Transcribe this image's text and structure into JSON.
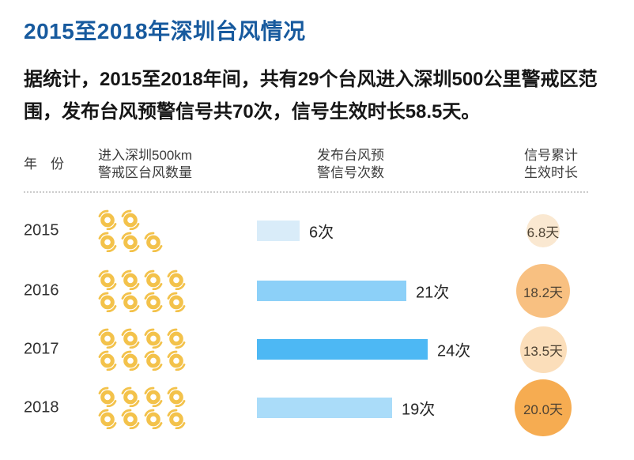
{
  "title": "2015至2018年深圳台风情况",
  "intro": {
    "line1": "据统计，2015至2018年间，共有29个台风进入深圳500公里警戒区范",
    "line2": "围，发布台风预警信号共70次，信号生效时长58.5天。"
  },
  "colors": {
    "title": "#175A9E",
    "typhoon_icon": "#F3C24B",
    "divider": "#cccccc"
  },
  "table": {
    "headers": {
      "year": "年　份",
      "typhoons_line1": "进入深圳500km",
      "typhoons_line2": "警戒区台风数量",
      "warnings_line1": "发布台风预",
      "warnings_line2": "警信号次数",
      "days_line1": "信号累计",
      "days_line2": "生效时长"
    },
    "rows": [
      {
        "year": "2015",
        "typhoon_count": 5,
        "icon_layout": [
          2,
          3
        ],
        "warning_count": 6,
        "warning_label": "6次",
        "bar_color": "#D9ECF9",
        "days": 6.8,
        "days_label": "6.8天",
        "circle_color": "#FAE8D1"
      },
      {
        "year": "2016",
        "typhoon_count": 8,
        "icon_layout": [
          4,
          4
        ],
        "warning_count": 21,
        "warning_label": "21次",
        "bar_color": "#8CD0F8",
        "days": 18.2,
        "days_label": "18.2天",
        "circle_color": "#F8C081"
      },
      {
        "year": "2017",
        "typhoon_count": 8,
        "icon_layout": [
          4,
          4
        ],
        "warning_count": 24,
        "warning_label": "24次",
        "bar_color": "#4DB8F4",
        "days": 13.5,
        "days_label": "13.5天",
        "circle_color": "#FBDEBA"
      },
      {
        "year": "2018",
        "typhoon_count": 8,
        "icon_layout": [
          4,
          4
        ],
        "warning_count": 19,
        "warning_label": "19次",
        "bar_color": "#AADCF9",
        "days": 20.0,
        "days_label": "20.0天",
        "circle_color": "#F6AC51"
      }
    ]
  },
  "chart_data": {
    "type": "bar",
    "title": "2015至2018年深圳台风情况",
    "categories": [
      "2015",
      "2016",
      "2017",
      "2018"
    ],
    "series": [
      {
        "name": "进入深圳500km警戒区台风数量",
        "unit": "个",
        "representation": "typhoon-icon-pictograph",
        "values": [
          5,
          8,
          8,
          8
        ]
      },
      {
        "name": "发布台风预警信号次数",
        "unit": "次",
        "representation": "horizontal-bar",
        "values": [
          6,
          21,
          24,
          19
        ]
      },
      {
        "name": "信号累计生效时长",
        "unit": "天",
        "representation": "proportional-area-circle",
        "values": [
          6.8,
          18.2,
          13.5,
          20.0
        ]
      }
    ],
    "totals": {
      "typhoons": 29,
      "warning_signals": 70,
      "effective_days": 58.5
    },
    "legend_position": "none",
    "grid": false
  }
}
